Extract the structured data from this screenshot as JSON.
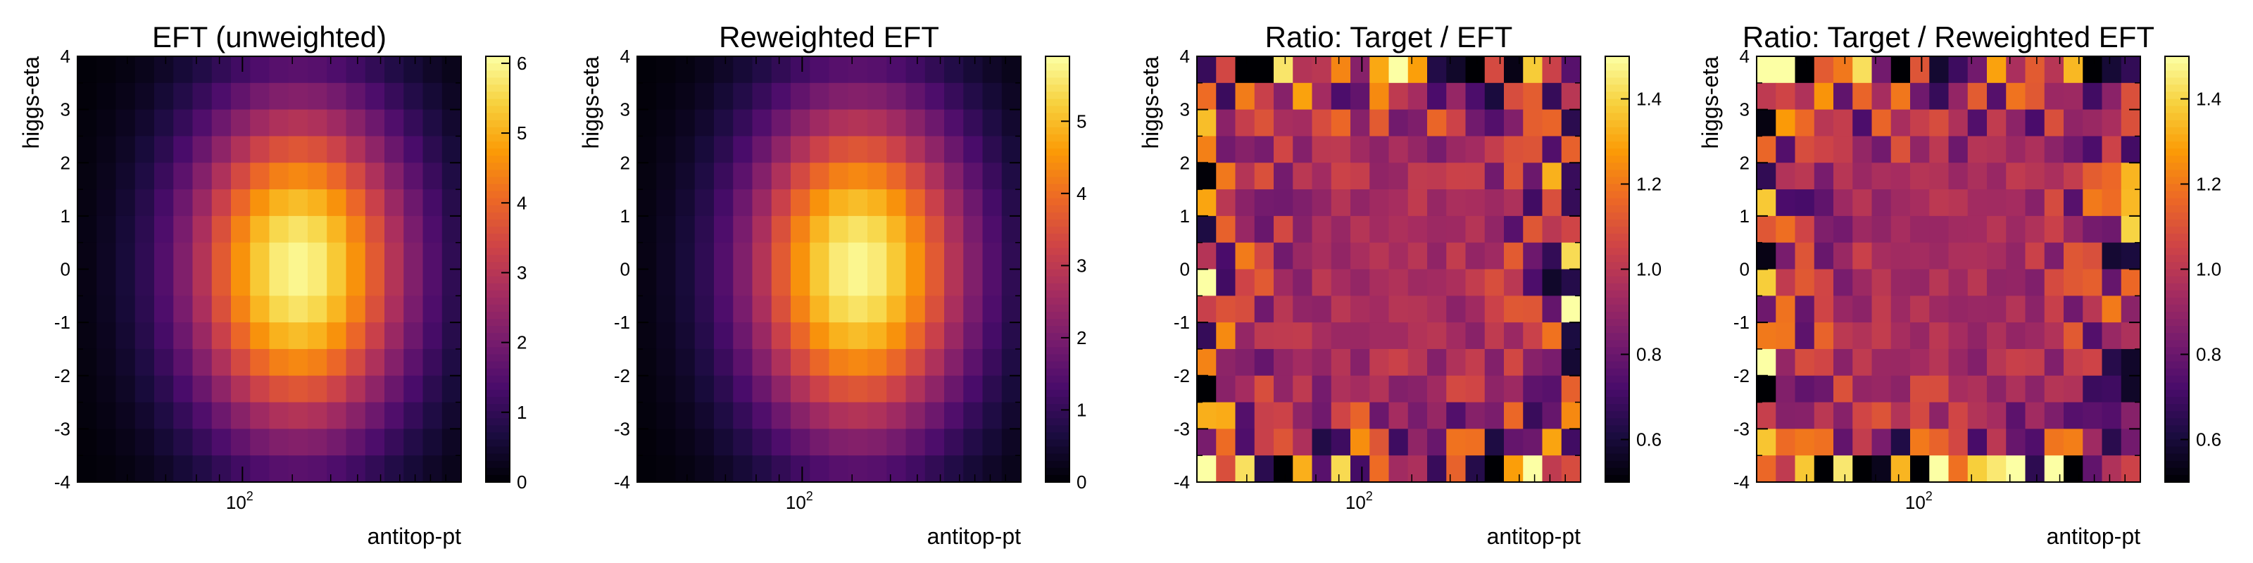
{
  "chart_data": [
    {
      "type": "heatmap",
      "title": "EFT (unweighted)",
      "xlabel": "antitop-pt",
      "ylabel": "higgs-eta",
      "x_scale": "log",
      "x_tick_labels": [
        "10",
        "2"
      ],
      "y_range": [
        -4,
        4
      ],
      "y_ticks": [
        "4",
        "3",
        "2",
        "1",
        "0",
        "-1",
        "-2",
        "-3",
        "-4"
      ],
      "colorbar_range": [
        0,
        6.1
      ],
      "colorbar_ticks": [
        "0",
        "1",
        "2",
        "3",
        "4",
        "5",
        "6"
      ],
      "grid_bins": [
        20,
        16
      ],
      "distribution": "gaussian",
      "peak_bin": [
        11.5,
        8.0
      ],
      "spread_bins": [
        4.2,
        4.6
      ],
      "peak_value": 6.0
    },
    {
      "type": "heatmap",
      "title": "Reweighted EFT",
      "xlabel": "antitop-pt",
      "ylabel": "higgs-eta",
      "x_scale": "log",
      "x_tick_labels": [
        "10",
        "2"
      ],
      "y_range": [
        -4,
        4
      ],
      "y_ticks": [
        "4",
        "3",
        "2",
        "1",
        "0",
        "-1",
        "-2",
        "-3",
        "-4"
      ],
      "colorbar_range": [
        0,
        5.9
      ],
      "colorbar_ticks": [
        "0",
        "1",
        "2",
        "3",
        "4",
        "5"
      ],
      "grid_bins": [
        20,
        16
      ],
      "distribution": "gaussian",
      "peak_bin": [
        11.5,
        8.0
      ],
      "spread_bins": [
        4.2,
        4.6
      ],
      "peak_value": 5.8
    },
    {
      "type": "heatmap",
      "title": "Ratio: Target / EFT",
      "xlabel": "antitop-pt",
      "ylabel": "higgs-eta",
      "x_scale": "log",
      "x_tick_labels": [
        "10",
        "2"
      ],
      "y_range": [
        -4,
        4
      ],
      "y_ticks": [
        "4",
        "3",
        "2",
        "1",
        "0",
        "-1",
        "-2",
        "-3",
        "-4"
      ],
      "colorbar_range": [
        0.5,
        1.5
      ],
      "colorbar_ticks": [
        "0.6",
        "0.8",
        "1.0",
        "1.2",
        "1.4"
      ],
      "grid_bins": [
        20,
        16
      ],
      "distribution": "ratio_noise",
      "center_value": 0.95,
      "seed": 7
    },
    {
      "type": "heatmap",
      "title": "Ratio: Target / Reweighted EFT",
      "xlabel": "antitop-pt",
      "ylabel": "higgs-eta",
      "x_scale": "log",
      "x_tick_labels": [
        "10",
        "2"
      ],
      "y_range": [
        -4,
        4
      ],
      "y_ticks": [
        "4",
        "3",
        "2",
        "1",
        "0",
        "-1",
        "-2",
        "-3",
        "-4"
      ],
      "colorbar_range": [
        0.5,
        1.5
      ],
      "colorbar_ticks": [
        "0.6",
        "0.8",
        "1.0",
        "1.2",
        "1.4"
      ],
      "grid_bins": [
        20,
        16
      ],
      "distribution": "ratio_noise",
      "center_value": 0.95,
      "seed": 19
    }
  ],
  "colormap": [
    "#000004",
    "#1b0c41",
    "#4a0c6b",
    "#781c6d",
    "#a52c60",
    "#cf4446",
    "#ed6925",
    "#fb9b06",
    "#f7d13d",
    "#fcffa4"
  ]
}
